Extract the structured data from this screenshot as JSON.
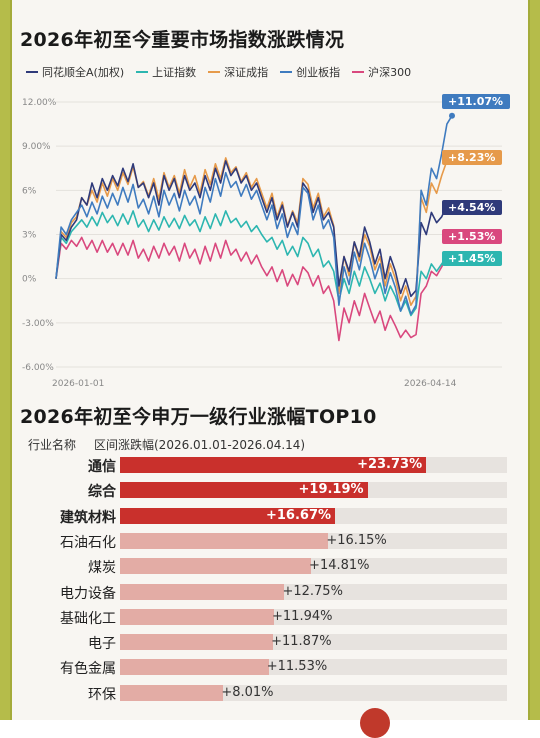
{
  "line_title": "2026年初至今重要市场指数涨跌情况",
  "bar_title": "2026年初至今申万一级行业涨幅TOP10",
  "chart_data": [
    {
      "type": "line",
      "title": "2026年初至今重要市场指数涨跌情况",
      "x_start": "2026-01-01",
      "x_end": "2026-04-14",
      "y_ticks": [
        "12.00%",
        "9.00%",
        "6%",
        "3%",
        "0%",
        "-3.00%",
        "-6.00%"
      ],
      "ylim": [
        -6,
        12
      ],
      "legend_position": "top",
      "series": [
        {
          "name": "同花顺全A(加权)",
          "color": "#2f3a7a",
          "end_label": "+4.54%",
          "values": [
            0,
            3.0,
            2.6,
            3.5,
            4.0,
            5.5,
            5.0,
            6.5,
            5.5,
            6.8,
            6.0,
            7.0,
            6.3,
            7.5,
            6.6,
            7.8,
            6.2,
            6.5,
            5.5,
            6.5,
            5.0,
            7.0,
            6.0,
            6.8,
            5.5,
            7.0,
            6.0,
            6.5,
            5.5,
            7.0,
            6.0,
            7.5,
            6.5,
            8.0,
            7.0,
            7.5,
            6.5,
            7.0,
            6.0,
            6.5,
            5.5,
            4.5,
            5.5,
            4.0,
            5.0,
            3.5,
            4.5,
            3.5,
            6.5,
            6.0,
            4.5,
            5.5,
            4.0,
            4.5,
            3.5,
            -0.5,
            1.5,
            0.5,
            2.5,
            1.5,
            3.5,
            2.5,
            1.0,
            2.0,
            0,
            1.5,
            0.5,
            -1.0,
            0,
            -1.2,
            -0.8,
            3.8,
            3.0,
            4.5,
            3.8,
            4.2,
            5.0,
            4.54
          ]
        },
        {
          "name": "上证指数",
          "color": "#2db6b0",
          "end_label": "+1.45%",
          "values": [
            0,
            2.8,
            2.4,
            3.2,
            3.6,
            4.0,
            3.5,
            4.2,
            3.6,
            4.5,
            3.8,
            4.3,
            3.6,
            4.4,
            3.7,
            4.6,
            3.5,
            4.0,
            3.2,
            4.0,
            3.3,
            4.2,
            3.5,
            4.1,
            3.4,
            4.3,
            3.6,
            4.0,
            3.2,
            4.2,
            3.4,
            4.4,
            3.6,
            4.6,
            3.8,
            4.1,
            3.5,
            3.9,
            3.2,
            3.6,
            3.0,
            2.5,
            2.8,
            2.0,
            2.6,
            1.6,
            2.2,
            1.5,
            2.8,
            2.4,
            1.5,
            2.0,
            0.8,
            1.2,
            0.5,
            -1.5,
            0,
            -1.0,
            0.5,
            -0.5,
            0.8,
            0,
            -1.0,
            -0.3,
            -1.5,
            -0.5,
            -1.2,
            -2.2,
            -1.5,
            -2.5,
            -2.0,
            0.5,
            0,
            1.0,
            0.5,
            1.0,
            1.5,
            1.45
          ]
        },
        {
          "name": "深证成指",
          "color": "#e69a4a",
          "end_label": "+8.23%",
          "values": [
            0,
            3.2,
            2.8,
            3.8,
            4.2,
            5.5,
            5.0,
            6.0,
            5.2,
            6.5,
            5.6,
            6.8,
            6.0,
            7.2,
            6.4,
            7.6,
            6.2,
            6.6,
            5.6,
            6.8,
            5.4,
            7.2,
            6.2,
            7.0,
            5.8,
            7.4,
            6.2,
            7.0,
            5.8,
            7.4,
            6.4,
            7.8,
            6.8,
            8.2,
            7.2,
            7.6,
            6.6,
            7.2,
            6.2,
            6.8,
            5.8,
            4.8,
            5.8,
            4.2,
            5.2,
            3.6,
            4.6,
            3.8,
            6.8,
            6.4,
            4.8,
            5.8,
            4.2,
            4.8,
            3.6,
            -1.0,
            1.5,
            0.2,
            2.5,
            1.2,
            3.0,
            2.2,
            0.6,
            1.5,
            -0.5,
            1.0,
            0,
            -1.5,
            -0.5,
            -1.8,
            -1.2,
            5.5,
            4.5,
            6.5,
            5.8,
            7.0,
            8.0,
            8.23
          ]
        },
        {
          "name": "创业板指",
          "color": "#3f7bbf",
          "end_label": "+11.07%",
          "values": [
            0,
            3.5,
            3.0,
            4.0,
            4.5,
            5.0,
            4.2,
            5.2,
            4.4,
            5.6,
            4.8,
            5.8,
            5.0,
            6.2,
            5.2,
            6.4,
            4.8,
            5.4,
            4.4,
            5.6,
            4.2,
            6.0,
            5.0,
            5.8,
            4.6,
            6.0,
            5.0,
            5.6,
            4.4,
            6.2,
            5.2,
            6.8,
            5.6,
            7.2,
            6.2,
            6.6,
            5.6,
            6.4,
            5.4,
            6.0,
            5.0,
            4.0,
            5.0,
            3.4,
            4.4,
            2.8,
            3.8,
            3.0,
            6.2,
            5.8,
            4.0,
            5.0,
            3.4,
            4.0,
            2.8,
            -1.8,
            0.8,
            -0.4,
            1.8,
            0.6,
            2.4,
            1.4,
            0,
            1.0,
            -1.0,
            0.4,
            -0.6,
            -2.2,
            -1.2,
            -2.4,
            -1.8,
            6.0,
            5.0,
            7.5,
            6.8,
            8.5,
            10.5,
            11.07
          ]
        },
        {
          "name": "沪深300",
          "color": "#d9487e",
          "end_label": "+1.53%",
          "values": [
            0,
            2.4,
            2.0,
            2.6,
            2.2,
            2.8,
            2.0,
            2.6,
            1.8,
            2.6,
            1.8,
            2.4,
            1.6,
            2.4,
            1.6,
            2.6,
            1.4,
            2.0,
            1.2,
            2.2,
            1.4,
            2.4,
            1.6,
            2.2,
            1.2,
            2.4,
            1.4,
            2.0,
            1.0,
            2.2,
            1.2,
            2.4,
            1.4,
            2.6,
            1.6,
            2.0,
            1.2,
            1.8,
            1.0,
            1.6,
            0.8,
            0.2,
            0.8,
            -0.2,
            0.6,
            -0.5,
            0.3,
            -0.4,
            0.8,
            0.4,
            -0.5,
            0.2,
            -1.0,
            -0.5,
            -1.5,
            -4.2,
            -2.0,
            -3.0,
            -1.5,
            -2.5,
            -1.0,
            -2.0,
            -3.0,
            -2.2,
            -3.5,
            -2.5,
            -3.2,
            -4.0,
            -3.5,
            -4.0,
            -3.8,
            -1.0,
            -0.5,
            0.5,
            0.2,
            0.8,
            1.5,
            1.53
          ]
        }
      ]
    },
    {
      "type": "bar",
      "title": "2026年初至今申万一级行业涨幅TOP10",
      "header_col1": "行业名称",
      "header_col2": "区间涨跌幅(2026.01.01-2026.04.14)",
      "xlim": [
        0,
        30
      ],
      "categories": [
        "通信",
        "综合",
        "建筑材料",
        "石油石化",
        "煤炭",
        "电力设备",
        "基础化工",
        "电子",
        "有色金属",
        "环保"
      ],
      "values": [
        23.73,
        19.19,
        16.67,
        16.15,
        14.81,
        12.75,
        11.94,
        11.87,
        11.53,
        8.01
      ],
      "labels": [
        "+23.73%",
        "+19.19%",
        "+16.67%",
        "+16.15%",
        "+14.81%",
        "+12.75%",
        "+11.94%",
        "+11.87%",
        "+11.53%",
        "+8.01%"
      ],
      "highlight_count": 3,
      "highlight_color": "#c9302c",
      "normal_color": "#e3aca5"
    }
  ]
}
